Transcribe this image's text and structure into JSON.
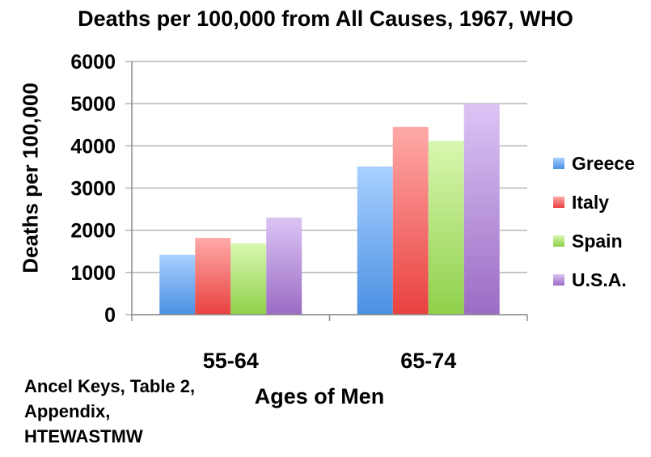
{
  "chart_data": {
    "type": "bar",
    "title": "Deaths per 100,000 from All Causes, 1967, WHO",
    "xlabel": "Ages of Men",
    "ylabel": "Deaths per 100,000",
    "categories": [
      "55-64",
      "65-74"
    ],
    "series": [
      {
        "name": "Greece",
        "values": [
          1420,
          3510
        ],
        "color": "#4a90e2",
        "color_light": "#a9d0ff"
      },
      {
        "name": "Italy",
        "values": [
          1820,
          4450
        ],
        "color": "#e8413f",
        "color_light": "#ffaaa8"
      },
      {
        "name": "Spain",
        "values": [
          1690,
          4120
        ],
        "color": "#8fd04a",
        "color_light": "#d8f7b0"
      },
      {
        "name": "U.S.A.",
        "values": [
          2300,
          5000
        ],
        "color": "#9b6cc4",
        "color_light": "#dcc4f5"
      }
    ],
    "yticks": [
      "0",
      "1000",
      "2000",
      "3000",
      "4000",
      "5000",
      "6000"
    ],
    "ylim": [
      0,
      6000
    ],
    "grid": true,
    "legend_position": "right"
  },
  "source_note": [
    "Ancel Keys, Table 2,",
    "Appendix,",
    "HTEWASTMW"
  ]
}
